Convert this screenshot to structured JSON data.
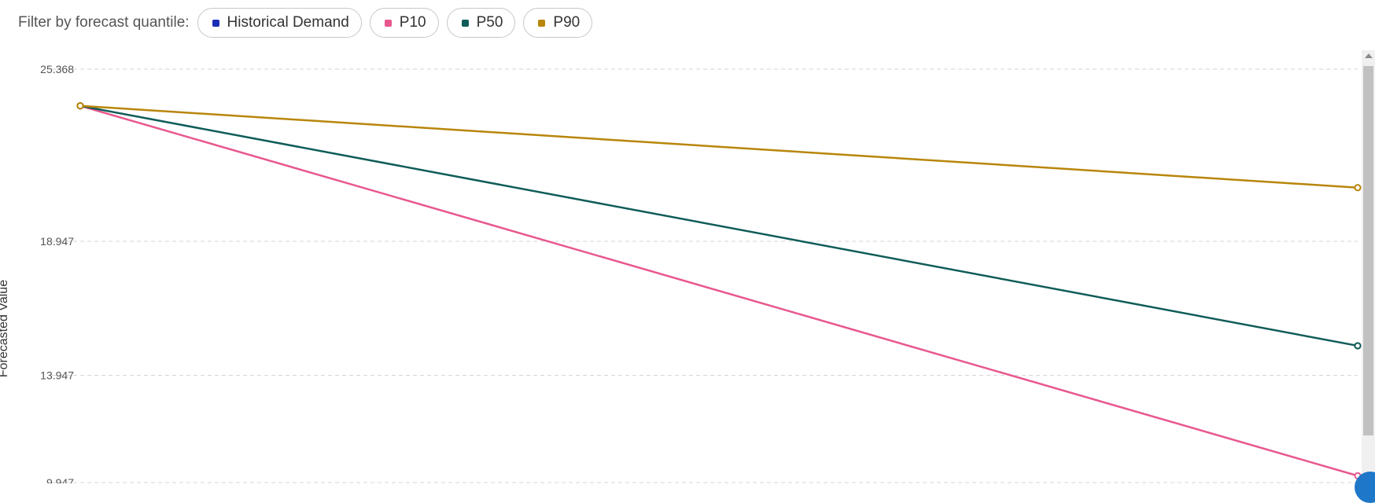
{
  "filter": {
    "label": "Filter by forecast quantile:",
    "options": [
      {
        "label": "Historical Demand",
        "color": "#1a2fb5"
      },
      {
        "label": "P10",
        "color": "#e8578e"
      },
      {
        "label": "P50",
        "color": "#0f5c58"
      },
      {
        "label": "P90",
        "color": "#b8860b"
      }
    ]
  },
  "chart_data": {
    "type": "line",
    "ylabel": "Forecasted Value",
    "xlabel": "",
    "ylim": [
      9.947,
      25.368
    ],
    "yticks": [
      "25.368",
      "18.947",
      "13.947",
      "9.947"
    ],
    "grid": true,
    "x": [
      0,
      1
    ],
    "series": [
      {
        "name": "P10",
        "color": "#e8578e",
        "values": [
          24.0,
          10.2
        ]
      },
      {
        "name": "P50",
        "color": "#0f5c58",
        "values": [
          24.0,
          15.05
        ]
      },
      {
        "name": "P90",
        "color": "#b8860b",
        "values": [
          24.0,
          20.95
        ]
      }
    ]
  }
}
